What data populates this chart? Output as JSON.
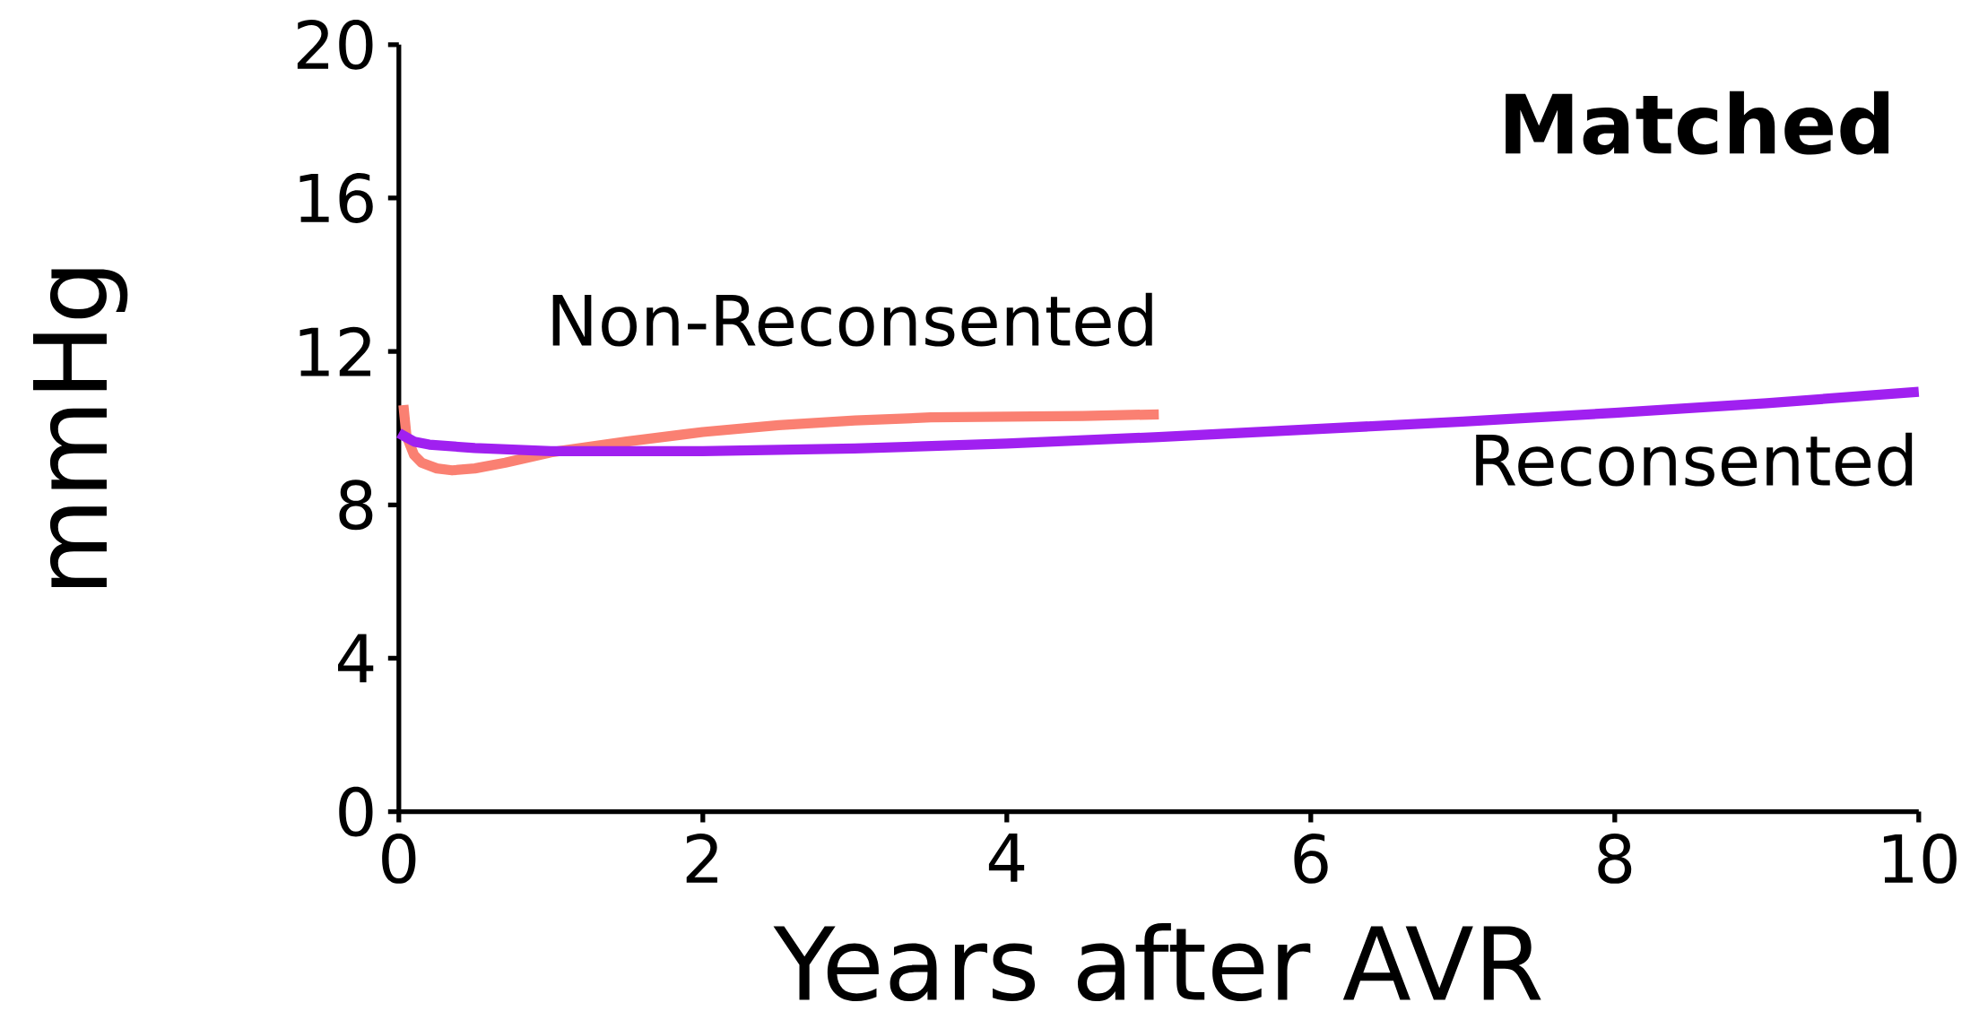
{
  "chart_data": {
    "type": "line",
    "title": "**Matched**",
    "xlabel": "Years after AVR",
    "ylabel": "mmHg",
    "xlim": [
      0,
      10
    ],
    "xticks": [
      0,
      2,
      4,
      6,
      8,
      10
    ],
    "ylim": [
      0,
      20
    ],
    "yticks": [
      0,
      4,
      8,
      12,
      16,
      20
    ],
    "series": [
      {
        "name": "Non-Reconsented",
        "color": "#fa8072",
        "x": [
          0.03,
          0.05,
          0.1,
          0.15,
          0.25,
          0.35,
          0.5,
          0.7,
          1,
          1.5,
          2,
          2.5,
          3,
          3.5,
          4,
          4.5,
          5
        ],
        "values": [
          10.6,
          9.8,
          9.3,
          9.1,
          8.95,
          8.9,
          8.95,
          9.1,
          9.37,
          9.65,
          9.9,
          10.08,
          10.2,
          10.28,
          10.3,
          10.32,
          10.36
        ]
      },
      {
        "name": "Reconsented",
        "color": "#a020f0",
        "x": [
          0,
          0.1,
          0.2,
          0.5,
          1,
          2,
          3,
          4,
          5,
          6,
          7,
          8,
          9,
          10
        ],
        "values": [
          9.87,
          9.65,
          9.57,
          9.48,
          9.4,
          9.4,
          9.47,
          9.6,
          9.77,
          9.97,
          10.17,
          10.4,
          10.65,
          10.95
        ]
      }
    ]
  }
}
